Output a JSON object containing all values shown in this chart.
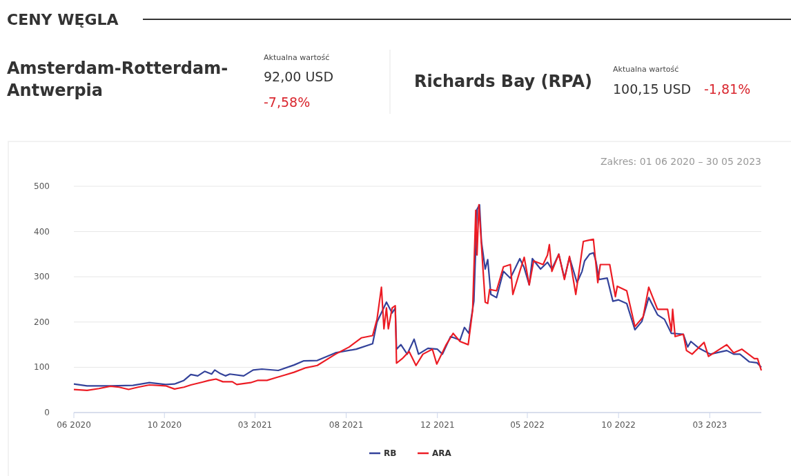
{
  "chart_data": {
    "type": "line",
    "title": "CENY WĘGLA",
    "annotations": [
      "Amsterdam-Rotterdam-Antwerpia",
      "Aktualna wartość",
      "92,00 USD",
      "-7,58%",
      "Richards Bay (RPA)",
      "Aktualna wartość",
      "100,15 USD",
      "-1,81%",
      "Zakres: 01 06 2020 – 30 05 2023"
    ],
    "xlim": [
      "2020-06-01",
      "2023-05-30"
    ],
    "xticks": [
      {
        "value": "2020-06-01",
        "label": "06 2020"
      },
      {
        "value": "2020-10-23",
        "label": "10 2020"
      },
      {
        "value": "2021-03-16",
        "label": "03 2021"
      },
      {
        "value": "2021-08-08",
        "label": "08 2021"
      },
      {
        "value": "2021-12-31",
        "label": "12 2021"
      },
      {
        "value": "2022-05-23",
        "label": "05 2022"
      },
      {
        "value": "2022-10-15",
        "label": "10 2022"
      },
      {
        "value": "2023-03-09",
        "label": "03 2023"
      }
    ],
    "ylim": [
      0,
      500
    ],
    "yticks": [
      0,
      100,
      200,
      300,
      400,
      500
    ],
    "grid": "y",
    "legend": "bottom",
    "marker": "none",
    "line_style": "solid",
    "series": [
      {
        "name": "RB",
        "color": "#33429a",
        "x": [
          "2020-06-01",
          "2020-06-22",
          "2020-07-29",
          "2020-09-03",
          "2020-09-29",
          "2020-10-25",
          "2020-11-08",
          "2020-11-23",
          "2020-12-04",
          "2020-12-15",
          "2020-12-26",
          "2021-01-06",
          "2021-01-11",
          "2021-01-20",
          "2021-01-28",
          "2021-02-04",
          "2021-02-26",
          "2021-03-13",
          "2021-03-27",
          "2021-04-22",
          "2021-05-17",
          "2021-06-01",
          "2021-06-23",
          "2021-07-22",
          "2021-08-24",
          "2021-09-19",
          "2021-09-26",
          "2021-10-11",
          "2021-10-20",
          "2021-10-25",
          "2021-10-27",
          "2021-11-03",
          "2021-11-13",
          "2021-11-24",
          "2021-12-01",
          "2021-12-16",
          "2021-12-31",
          "2022-01-08",
          "2022-01-21",
          "2022-02-05",
          "2022-02-12",
          "2022-02-19",
          "2022-02-27",
          "2022-03-04",
          "2022-03-08",
          "2022-03-11",
          "2022-03-17",
          "2022-03-21",
          "2022-03-26",
          "2022-04-04",
          "2022-04-15",
          "2022-04-26",
          "2022-05-11",
          "2022-05-18",
          "2022-05-26",
          "2022-05-31",
          "2022-06-13",
          "2022-06-24",
          "2022-07-01",
          "2022-07-12",
          "2022-07-21",
          "2022-07-29",
          "2022-08-10",
          "2022-08-18",
          "2022-08-22",
          "2022-08-30",
          "2022-09-05",
          "2022-09-09",
          "2022-09-14",
          "2022-09-27",
          "2022-10-06",
          "2022-10-15",
          "2022-10-28",
          "2022-11-10",
          "2022-11-21",
          "2022-12-02",
          "2022-12-16",
          "2022-12-27",
          "2023-01-07",
          "2023-01-26",
          "2023-02-02",
          "2023-02-07",
          "2023-02-20",
          "2023-03-10",
          "2023-04-05",
          "2023-04-16",
          "2023-04-26",
          "2023-05-11",
          "2023-05-23",
          "2023-05-30"
        ],
        "values": [
          63,
          59,
          59,
          60,
          66,
          62,
          63,
          71,
          84,
          81,
          91,
          85,
          94,
          86,
          81,
          85,
          81,
          94,
          96,
          93,
          105,
          114,
          115,
          132,
          140,
          152,
          200,
          244,
          220,
          231,
          140,
          150,
          129,
          162,
          129,
          142,
          140,
          129,
          168,
          160,
          188,
          175,
          246,
          449,
          459,
          378,
          317,
          338,
          261,
          254,
          312,
          297,
          340,
          320,
          282,
          340,
          317,
          332,
          317,
          350,
          297,
          343,
          287,
          312,
          335,
          350,
          353,
          335,
          294,
          297,
          246,
          249,
          241,
          183,
          201,
          254,
          216,
          206,
          175,
          173,
          145,
          157,
          142,
          129,
          137,
          129,
          129,
          112,
          110,
          100
        ]
      },
      {
        "name": "ARA",
        "color": "#ec1c24",
        "x": [
          "2020-06-01",
          "2020-06-22",
          "2020-07-11",
          "2020-07-29",
          "2020-08-12",
          "2020-08-27",
          "2020-09-11",
          "2020-09-29",
          "2020-10-25",
          "2020-11-08",
          "2020-11-23",
          "2020-12-04",
          "2020-12-22",
          "2021-01-02",
          "2021-01-13",
          "2021-01-24",
          "2021-02-08",
          "2021-02-15",
          "2021-03-09",
          "2021-03-20",
          "2021-04-04",
          "2021-04-18",
          "2021-05-03",
          "2021-05-17",
          "2021-06-05",
          "2021-06-23",
          "2021-07-22",
          "2021-08-13",
          "2021-09-01",
          "2021-09-19",
          "2021-09-26",
          "2021-10-03",
          "2021-10-07",
          "2021-10-11",
          "2021-10-14",
          "2021-10-20",
          "2021-10-25",
          "2021-10-27",
          "2021-11-05",
          "2021-11-16",
          "2021-11-27",
          "2021-12-08",
          "2021-12-23",
          "2021-12-30",
          "2022-01-14",
          "2022-01-25",
          "2022-02-05",
          "2022-02-18",
          "2022-02-25",
          "2022-03-02",
          "2022-03-04",
          "2022-03-07",
          "2022-03-13",
          "2022-03-17",
          "2022-03-21",
          "2022-03-24",
          "2022-04-04",
          "2022-04-15",
          "2022-04-26",
          "2022-04-30",
          "2022-05-11",
          "2022-05-18",
          "2022-05-26",
          "2022-06-02",
          "2022-06-17",
          "2022-06-24",
          "2022-06-27",
          "2022-07-01",
          "2022-07-12",
          "2022-07-21",
          "2022-07-29",
          "2022-08-08",
          "2022-08-20",
          "2022-08-29",
          "2022-09-05",
          "2022-09-12",
          "2022-09-16",
          "2022-10-01",
          "2022-10-10",
          "2022-10-13",
          "2022-10-28",
          "2022-11-10",
          "2022-11-23",
          "2022-12-02",
          "2022-12-16",
          "2023-01-01",
          "2023-01-07",
          "2023-01-09",
          "2023-01-13",
          "2023-01-26",
          "2023-01-31",
          "2023-02-09",
          "2023-02-28",
          "2023-03-07",
          "2023-04-05",
          "2023-04-16",
          "2023-04-29",
          "2023-05-19",
          "2023-05-24",
          "2023-05-30"
        ],
        "values": [
          51,
          49,
          53,
          58,
          56,
          51,
          56,
          61,
          59,
          52,
          56,
          61,
          67,
          71,
          74,
          68,
          68,
          62,
          66,
          71,
          71,
          77,
          83,
          89,
          99,
          104,
          129,
          145,
          165,
          170,
          206,
          277,
          185,
          231,
          185,
          231,
          236,
          109,
          119,
          135,
          104,
          129,
          140,
          107,
          150,
          175,
          157,
          150,
          226,
          447,
          348,
          459,
          327,
          244,
          241,
          272,
          269,
          322,
          327,
          261,
          312,
          343,
          282,
          335,
          327,
          348,
          371,
          312,
          350,
          294,
          345,
          261,
          378,
          381,
          383,
          287,
          327,
          327,
          256,
          279,
          269,
          190,
          211,
          277,
          228,
          228,
          180,
          228,
          168,
          173,
          137,
          129,
          155,
          124,
          150,
          132,
          140,
          119,
          119,
          93
        ]
      }
    ]
  }
}
